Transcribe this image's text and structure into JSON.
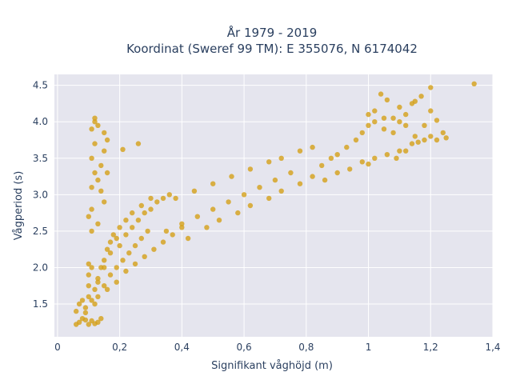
{
  "chart_data": {
    "type": "scatter",
    "title": [
      "År 1979 - 2019",
      "Koordinat (Sweref 99 TM): E 355076, N 6174042"
    ],
    "xlabel": "Signifikant våghöjd (m)",
    "ylabel": "Vågperiod (s)",
    "xlim": [
      -0.01,
      1.4
    ],
    "ylim": [
      1.05,
      4.65
    ],
    "xticks": [
      0,
      0.2,
      0.4,
      0.6,
      0.8,
      1,
      1.2,
      1.4
    ],
    "xtick_labels": [
      "0",
      "0,2",
      "0,4",
      "0,6",
      "0,8",
      "1",
      "1,2",
      "1,4"
    ],
    "yticks": [
      1.5,
      2,
      2.5,
      3,
      3.5,
      4,
      4.5
    ],
    "ytick_labels": [
      "1.5",
      "2.0",
      "2.5",
      "3.0",
      "3.5",
      "4.0",
      "4.5"
    ],
    "grid": true,
    "colors": {
      "marker": "#D4A018",
      "plot_bg": "#E5E5EE",
      "grid": "#ffffff"
    },
    "points": [
      [
        0.06,
        1.22
      ],
      [
        0.07,
        1.25
      ],
      [
        0.08,
        1.3
      ],
      [
        0.09,
        1.28
      ],
      [
        0.1,
        1.22
      ],
      [
        0.11,
        1.27
      ],
      [
        0.12,
        1.23
      ],
      [
        0.13,
        1.25
      ],
      [
        0.14,
        1.3
      ],
      [
        0.06,
        1.4
      ],
      [
        0.07,
        1.5
      ],
      [
        0.08,
        1.55
      ],
      [
        0.09,
        1.45
      ],
      [
        0.1,
        1.6
      ],
      [
        0.1,
        1.75
      ],
      [
        0.1,
        1.9
      ],
      [
        0.11,
        2.0
      ],
      [
        0.1,
        2.05
      ],
      [
        0.12,
        1.5
      ],
      [
        0.12,
        1.7
      ],
      [
        0.13,
        1.85
      ],
      [
        0.14,
        2.0
      ],
      [
        0.15,
        2.1
      ],
      [
        0.16,
        2.25
      ],
      [
        0.17,
        2.35
      ],
      [
        0.18,
        2.45
      ],
      [
        0.2,
        2.55
      ],
      [
        0.13,
        1.6
      ],
      [
        0.15,
        1.75
      ],
      [
        0.17,
        1.9
      ],
      [
        0.19,
        2.0
      ],
      [
        0.21,
        2.1
      ],
      [
        0.23,
        2.2
      ],
      [
        0.25,
        2.3
      ],
      [
        0.27,
        2.4
      ],
      [
        0.29,
        2.5
      ],
      [
        0.16,
        1.7
      ],
      [
        0.19,
        1.8
      ],
      [
        0.22,
        1.95
      ],
      [
        0.25,
        2.05
      ],
      [
        0.28,
        2.15
      ],
      [
        0.31,
        2.25
      ],
      [
        0.34,
        2.35
      ],
      [
        0.37,
        2.45
      ],
      [
        0.4,
        2.55
      ],
      [
        0.2,
        2.3
      ],
      [
        0.22,
        2.45
      ],
      [
        0.24,
        2.55
      ],
      [
        0.26,
        2.65
      ],
      [
        0.28,
        2.75
      ],
      [
        0.3,
        2.8
      ],
      [
        0.32,
        2.9
      ],
      [
        0.34,
        2.95
      ],
      [
        0.36,
        3.0
      ],
      [
        0.35,
        2.5
      ],
      [
        0.4,
        2.6
      ],
      [
        0.45,
        2.7
      ],
      [
        0.5,
        2.8
      ],
      [
        0.55,
        2.9
      ],
      [
        0.6,
        3.0
      ],
      [
        0.65,
        3.1
      ],
      [
        0.7,
        3.2
      ],
      [
        0.75,
        3.3
      ],
      [
        0.42,
        2.4
      ],
      [
        0.48,
        2.55
      ],
      [
        0.52,
        2.65
      ],
      [
        0.58,
        2.75
      ],
      [
        0.62,
        2.85
      ],
      [
        0.68,
        2.95
      ],
      [
        0.72,
        3.05
      ],
      [
        0.78,
        3.15
      ],
      [
        0.82,
        3.25
      ],
      [
        0.38,
        2.95
      ],
      [
        0.44,
        3.05
      ],
      [
        0.5,
        3.15
      ],
      [
        0.56,
        3.25
      ],
      [
        0.62,
        3.35
      ],
      [
        0.68,
        3.45
      ],
      [
        0.72,
        3.5
      ],
      [
        0.78,
        3.6
      ],
      [
        0.82,
        3.65
      ],
      [
        0.85,
        3.4
      ],
      [
        0.88,
        3.5
      ],
      [
        0.9,
        3.55
      ],
      [
        0.93,
        3.65
      ],
      [
        0.96,
        3.75
      ],
      [
        0.98,
        3.85
      ],
      [
        1.0,
        3.95
      ],
      [
        1.02,
        4.0
      ],
      [
        1.05,
        4.05
      ],
      [
        0.86,
        3.2
      ],
      [
        0.9,
        3.3
      ],
      [
        0.94,
        3.35
      ],
      [
        0.98,
        3.45
      ],
      [
        1.02,
        3.5
      ],
      [
        1.06,
        3.55
      ],
      [
        1.1,
        3.6
      ],
      [
        1.14,
        3.7
      ],
      [
        1.18,
        3.75
      ],
      [
        1.0,
        4.1
      ],
      [
        1.02,
        4.15
      ],
      [
        1.05,
        3.9
      ],
      [
        1.08,
        3.85
      ],
      [
        1.1,
        4.0
      ],
      [
        1.12,
        3.95
      ],
      [
        1.15,
        3.8
      ],
      [
        1.2,
        3.8
      ],
      [
        1.22,
        3.75
      ],
      [
        1.25,
        3.78
      ],
      [
        0.11,
        2.5
      ],
      [
        0.11,
        2.8
      ],
      [
        0.11,
        3.1
      ],
      [
        0.12,
        3.3
      ],
      [
        0.11,
        3.5
      ],
      [
        0.12,
        3.7
      ],
      [
        0.11,
        3.9
      ],
      [
        0.12,
        4.0
      ],
      [
        0.13,
        3.95
      ],
      [
        0.12,
        4.05
      ],
      [
        0.1,
        2.7
      ],
      [
        0.13,
        3.2
      ],
      [
        0.14,
        3.4
      ],
      [
        0.15,
        3.6
      ],
      [
        0.16,
        3.75
      ],
      [
        0.15,
        2.9
      ],
      [
        0.14,
        3.05
      ],
      [
        0.13,
        2.6
      ],
      [
        0.15,
        3.85
      ],
      [
        0.16,
        3.3
      ],
      [
        0.26,
        3.7
      ],
      [
        0.21,
        3.62
      ],
      [
        1.06,
        4.3
      ],
      [
        1.1,
        4.2
      ],
      [
        1.14,
        4.25
      ],
      [
        1.17,
        4.35
      ],
      [
        1.2,
        4.15
      ],
      [
        1.2,
        4.47
      ],
      [
        1.34,
        4.52
      ],
      [
        1.22,
        4.02
      ],
      [
        1.04,
        4.38
      ],
      [
        1.12,
        4.1
      ],
      [
        1.24,
        3.85
      ],
      [
        1.18,
        3.95
      ],
      [
        1.16,
        3.72
      ],
      [
        1.15,
        4.28
      ],
      [
        1.08,
        4.05
      ],
      [
        1.09,
        3.5
      ],
      [
        1.12,
        3.6
      ],
      [
        1.0,
        3.42
      ],
      [
        0.24,
        2.75
      ],
      [
        0.27,
        2.85
      ],
      [
        0.3,
        2.95
      ],
      [
        0.22,
        2.65
      ],
      [
        0.19,
        2.4
      ],
      [
        0.17,
        2.2
      ],
      [
        0.15,
        2.0
      ],
      [
        0.13,
        1.8
      ],
      [
        0.11,
        1.55
      ],
      [
        0.09,
        1.38
      ]
    ]
  }
}
